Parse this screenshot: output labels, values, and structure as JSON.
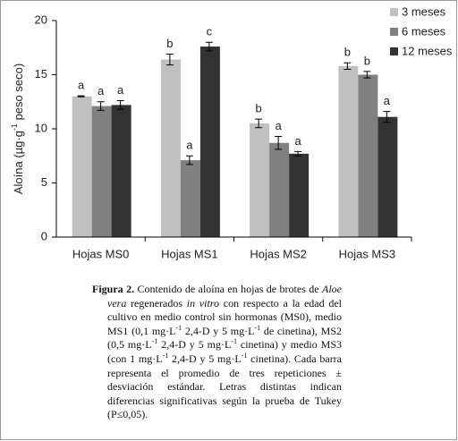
{
  "chart_data": {
    "type": "bar",
    "y_label_parts": [
      "Aloína (µg·g",
      "-1",
      " peso seco)"
    ],
    "categories": [
      "Hojas MS0",
      "Hojas MS1",
      "Hojas MS2",
      "Hojas MS3"
    ],
    "series": [
      {
        "name": "3 meses",
        "color": "#c0c0c0",
        "values": [
          13.0,
          16.4,
          10.5,
          15.8
        ],
        "errors": [
          0.05,
          0.5,
          0.4,
          0.3
        ],
        "letters": [
          "a",
          "b",
          "b",
          "b"
        ]
      },
      {
        "name": "6 meses",
        "color": "#808080",
        "values": [
          12.1,
          7.1,
          8.7,
          15.0
        ],
        "errors": [
          0.4,
          0.4,
          0.6,
          0.3
        ],
        "letters": [
          "a",
          "a",
          "a",
          "b"
        ]
      },
      {
        "name": "12 meses",
        "color": "#333333",
        "values": [
          12.2,
          17.6,
          7.7,
          11.1
        ],
        "errors": [
          0.4,
          0.4,
          0.2,
          0.5
        ],
        "letters": [
          "a",
          "c",
          "a",
          "a"
        ]
      }
    ],
    "ylim": [
      0,
      20
    ],
    "yticks": [
      0,
      5,
      10,
      15,
      20
    ],
    "grid": false,
    "legend": "top-right"
  },
  "caption": [
    {
      "text": "Figura 2.",
      "style": "bold"
    },
    {
      "text": " Contenido de aloína en hojas de brotes de ",
      "style": "normal"
    },
    {
      "text": "Aloe vera",
      "style": "italic"
    },
    {
      "text": " regenerados ",
      "style": "normal"
    },
    {
      "text": "in vitro",
      "style": "italic"
    },
    {
      "text": " con respecto a la edad del cultivo en medio control sin hormonas (MS0), medio MS1 (0,1 mg·L",
      "style": "normal"
    },
    {
      "text": "-1",
      "style": "sup"
    },
    {
      "text": " 2,4-D y 5 mg·L",
      "style": "normal"
    },
    {
      "text": "-1",
      "style": "sup"
    },
    {
      "text": " de cinetina), MS2 (0,5 mg·L",
      "style": "normal"
    },
    {
      "text": "-1",
      "style": "sup"
    },
    {
      "text": " 2,4-D y 5 mg·L",
      "style": "normal"
    },
    {
      "text": "-1",
      "style": "sup"
    },
    {
      "text": " cinetina) y medio MS3 (con 1 mg·L",
      "style": "normal"
    },
    {
      "text": "-1",
      "style": "sup"
    },
    {
      "text": " 2,4-D y 5 mg·L",
      "style": "normal"
    },
    {
      "text": "-1",
      "style": "sup"
    },
    {
      "text": " cinetina). Cada barra representa el promedio de tres repeticiones ± desviación estándar. Letras distintas indican diferencias significativas según la prueba de Tukey (P≤0,05).",
      "style": "normal"
    }
  ]
}
